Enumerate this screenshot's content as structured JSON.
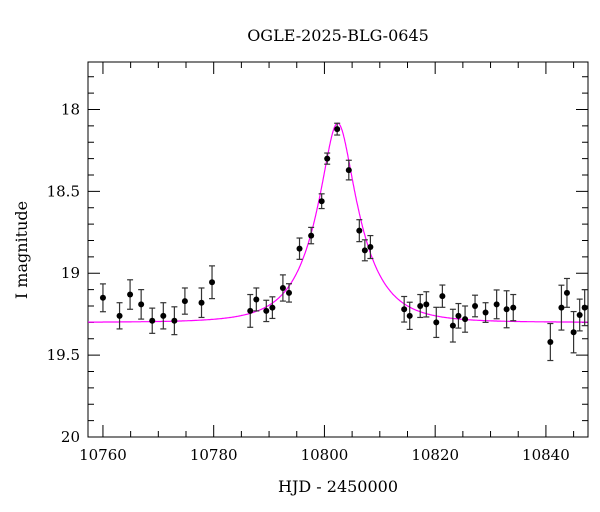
{
  "chart_data": {
    "type": "scatter",
    "title": "OGLE-2025-BLG-0645",
    "xlabel": "HJD - 2450000",
    "ylabel": "I magnitude",
    "xlim": [
      10757.3,
      10847.6
    ],
    "ylim": [
      20,
      17.71
    ],
    "y_inverted": true,
    "grid": false,
    "x_ticks": [
      10760,
      10780,
      10800,
      10820,
      10840
    ],
    "x_tick_labels": [
      "10760",
      "10780",
      "10800",
      "10820",
      "10840"
    ],
    "y_ticks": [
      18,
      18.5,
      19,
      19.5,
      20
    ],
    "y_tick_labels": [
      "18",
      "18.5",
      "19",
      "19.5",
      "20"
    ],
    "series": [
      {
        "kind": "points-with-errorbars",
        "color": "#000000",
        "x": [
          10760.0,
          10763.0,
          10764.9,
          10766.9,
          10768.9,
          10770.9,
          10772.9,
          10774.8,
          10777.8,
          10779.7,
          10786.6,
          10787.7,
          10789.5,
          10790.6,
          10792.5,
          10793.6,
          10795.5,
          10797.6,
          10799.5,
          10800.5,
          10802.3,
          10804.4,
          10806.3,
          10807.3,
          10808.3,
          10814.4,
          10815.4,
          10817.3,
          10818.4,
          10820.2,
          10821.3,
          10823.2,
          10824.2,
          10825.4,
          10827.2,
          10829.1,
          10831.1,
          10832.9,
          10834.1,
          10840.8,
          10842.8,
          10843.8,
          10845.0,
          10846.1,
          10847.0
        ],
        "y": [
          19.15,
          19.26,
          19.13,
          19.19,
          19.29,
          19.26,
          19.29,
          19.17,
          19.18,
          19.055,
          19.23,
          19.16,
          19.23,
          19.21,
          19.09,
          19.12,
          18.85,
          18.77,
          18.56,
          18.3,
          18.12,
          18.37,
          18.74,
          18.86,
          18.84,
          19.22,
          19.26,
          19.2,
          19.19,
          19.3,
          19.14,
          19.32,
          19.26,
          19.28,
          19.2,
          19.24,
          19.19,
          19.22,
          19.21,
          19.42,
          19.21,
          19.12,
          19.36,
          19.255,
          19.21
        ],
        "yerr": [
          0.085,
          0.08,
          0.09,
          0.09,
          0.077,
          0.08,
          0.085,
          0.08,
          0.09,
          0.1,
          0.1,
          0.07,
          0.065,
          0.066,
          0.08,
          0.056,
          0.065,
          0.05,
          0.045,
          0.034,
          0.036,
          0.06,
          0.067,
          0.064,
          0.07,
          0.078,
          0.083,
          0.07,
          0.077,
          0.092,
          0.068,
          0.1,
          0.075,
          0.08,
          0.066,
          0.06,
          0.088,
          0.113,
          0.08,
          0.113,
          0.137,
          0.088,
          0.126,
          0.097,
          0.11
        ]
      },
      {
        "kind": "model-curve",
        "color": "#ff00ff",
        "model": "point-lens",
        "t0": 10802.4,
        "tE": 7.6,
        "u0": 0.34,
        "baseline_mag": 19.3
      }
    ]
  }
}
